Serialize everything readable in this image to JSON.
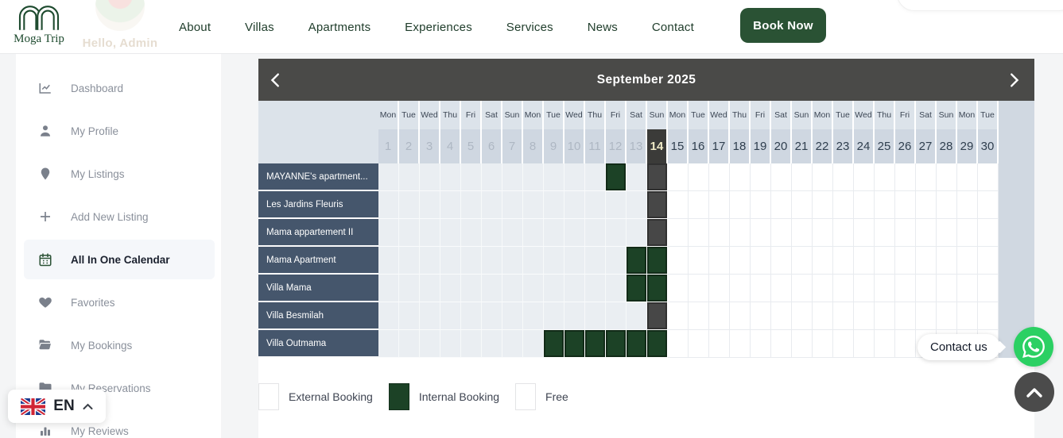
{
  "brand": {
    "name": "Moga Trip"
  },
  "user": {
    "greeting": "Hello, Admin"
  },
  "nav": {
    "items": [
      "About",
      "Villas",
      "Apartments",
      "Experiences",
      "Services",
      "News",
      "Contact"
    ],
    "book_now": "Book Now"
  },
  "sidebar": {
    "items": [
      {
        "label": "Dashboard",
        "icon": "chart-line-icon",
        "active": false
      },
      {
        "label": "My Profile",
        "icon": "user-icon",
        "active": false
      },
      {
        "label": "My Listings",
        "icon": "map-pin-icon",
        "active": false
      },
      {
        "label": "Add New Listing",
        "icon": "plus-icon",
        "active": false
      },
      {
        "label": "All In One Calendar",
        "icon": "calendar-icon",
        "active": true
      },
      {
        "label": "Favorites",
        "icon": "heart-icon",
        "active": false
      },
      {
        "label": "My Bookings",
        "icon": "folder-open-icon",
        "active": false
      },
      {
        "label": "My Reservations",
        "icon": "folder-icon",
        "active": false
      },
      {
        "label": "My Reviews",
        "icon": "bar-chart-icon",
        "active": false
      }
    ]
  },
  "language": {
    "code": "EN"
  },
  "calendar": {
    "title": "September 2025",
    "day_names": [
      "Mon",
      "Tue",
      "Wed",
      "Thu",
      "Fri",
      "Sat",
      "Sun",
      "Mon",
      "Tue",
      "Wed",
      "Thu",
      "Fri",
      "Sat",
      "Sun",
      "Mon",
      "Tue",
      "Wed",
      "Thu",
      "Fri",
      "Sat",
      "Sun",
      "Mon",
      "Tue",
      "Wed",
      "Thu",
      "Fri",
      "Sat",
      "Sun",
      "Mon",
      "Tue"
    ],
    "dates": [
      1,
      2,
      3,
      4,
      5,
      6,
      7,
      8,
      9,
      10,
      11,
      12,
      13,
      14,
      15,
      16,
      17,
      18,
      19,
      20,
      21,
      22,
      23,
      24,
      25,
      26,
      27,
      28,
      29,
      30
    ],
    "today": 14,
    "past_through": 13,
    "properties": [
      {
        "name": "MAYANNE's apartment...",
        "internal": [
          12
        ],
        "external": [
          14
        ]
      },
      {
        "name": "Les Jardins Fleuris",
        "internal": [],
        "external": [
          14
        ]
      },
      {
        "name": "Mama appartement II",
        "internal": [],
        "external": [
          14
        ]
      },
      {
        "name": "Mama Apartment",
        "internal": [
          13,
          14
        ],
        "external": []
      },
      {
        "name": "Villa Mama",
        "internal": [
          13,
          14
        ],
        "external": []
      },
      {
        "name": "Villa Besmilah",
        "internal": [],
        "external": [
          14
        ]
      },
      {
        "name": "Villa Outmama",
        "internal": [
          9,
          10,
          11,
          12,
          13,
          14
        ],
        "external": []
      }
    ],
    "legend": [
      {
        "label": "External Booking",
        "type": "external"
      },
      {
        "label": "Internal Booking",
        "type": "internal"
      },
      {
        "label": "Free",
        "type": "free"
      }
    ],
    "colors": {
      "internal_booking": "#1c4226",
      "external_booking": "#474747",
      "today_bg": "#3b3b39",
      "today_text": "#efeac6"
    }
  },
  "widgets": {
    "contact_us": "Contact us"
  },
  "theme": {
    "brand_green": "#2a5234",
    "whatsapp_green": "#2bd063"
  }
}
